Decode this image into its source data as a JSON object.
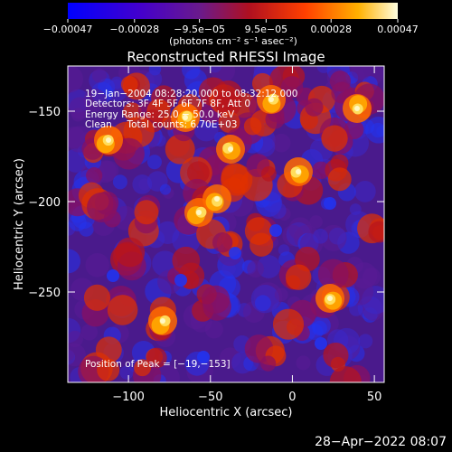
{
  "chart_data": {
    "type": "heatmap",
    "title": "Reconstructed RHESSI Image",
    "xlabel": "Heliocentric X (arcsec)",
    "ylabel": "Heliocentric Y (arcsec)",
    "xlim": [
      -137,
      56
    ],
    "ylim": [
      -300,
      -125
    ],
    "xticks": [
      -100,
      -50,
      0,
      50
    ],
    "yticks": [
      -150,
      -200,
      -250
    ],
    "xtick_labels": [
      "−100",
      "−50",
      "0",
      "50"
    ],
    "ytick_labels": [
      "−150",
      "−200",
      "−250"
    ],
    "colorbar": {
      "range": [
        -0.00047,
        0.00047
      ],
      "tick_values": [
        -0.00047,
        -0.00028,
        -9.5e-05,
        9.5e-05,
        0.00028,
        0.00047
      ],
      "tick_labels": [
        "−0.00047",
        "−0.00028",
        "−9.5e−05",
        "9.5e−05",
        "0.00028",
        "0.00047"
      ],
      "unit_label": "(photons cm⁻² s⁻¹ asec⁻²)"
    },
    "annotations": [
      "19−Jan−2004 08:28:20.000 to 08:32:12.000",
      "Detectors: 3F 4F 5F 6F 7F 8F, Att 0",
      "Energy Range: 25.0 − 50.0 keV",
      "Clean     Total counts: 6.70E+03"
    ],
    "peak_label": "Position of Peak = [−19,−153]",
    "grid": false,
    "colors": {
      "map_low": "#2a2aff",
      "map_mid": "#4a1a8c",
      "map_high": "#fff8a0",
      "background": "#000000"
    }
  },
  "footer": {
    "timestamp": "28−Apr−2022 08:07"
  }
}
